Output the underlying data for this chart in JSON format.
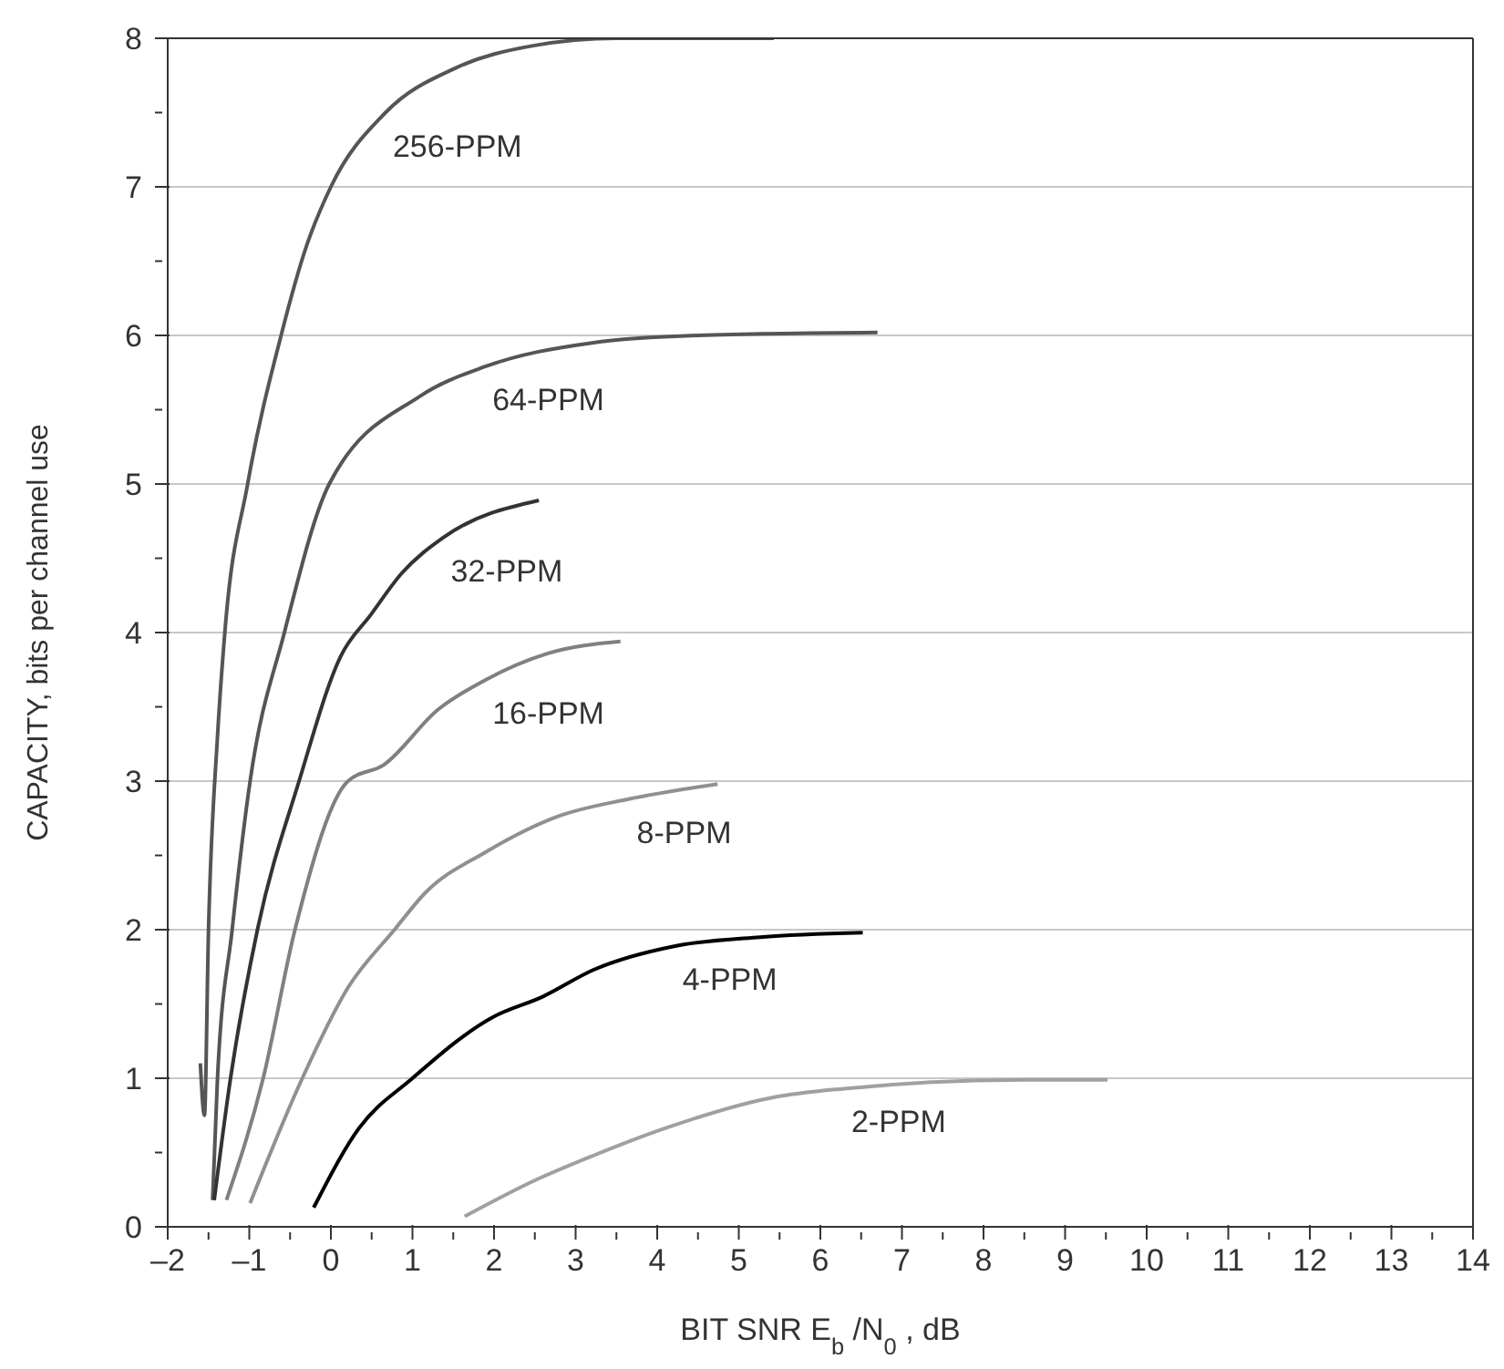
{
  "chart_data": {
    "type": "line",
    "xlabel": "BIT SNR E$_{b}$ /N$_{0}$ , dB",
    "ylabel": "CAPACITY, bits per channel use",
    "xlim": [
      -2,
      14
    ],
    "ylim": [
      0,
      8
    ],
    "xticks": [
      {
        "value": -2,
        "label": "–2"
      },
      {
        "value": -1.5,
        "label": null
      },
      {
        "value": -1,
        "label": "–1"
      },
      {
        "value": -0.5,
        "label": null
      },
      0,
      {
        "value": 0.5,
        "label": null
      },
      1,
      {
        "value": 1.5,
        "label": null
      },
      2,
      {
        "value": 2.5,
        "label": null
      },
      3,
      {
        "value": 3.5,
        "label": null
      },
      4,
      {
        "value": 4.5,
        "label": null
      },
      5,
      {
        "value": 5.5,
        "label": null
      },
      6,
      {
        "value": 6.5,
        "label": null
      },
      7,
      {
        "value": 7.5,
        "label": null
      },
      8,
      {
        "value": 8.5,
        "label": null
      },
      9,
      {
        "value": 9.5,
        "label": null
      },
      10,
      {
        "value": 10.5,
        "label": null
      },
      11,
      {
        "value": 11.5,
        "label": null
      },
      12,
      {
        "value": 12.5,
        "label": null
      },
      13,
      {
        "value": 13.5,
        "label": null
      },
      14
    ],
    "yticks": [
      0,
      {
        "value": 0.5,
        "label": null
      },
      1,
      {
        "value": 1.5,
        "label": null
      },
      2,
      {
        "value": 2.5,
        "label": null
      },
      3,
      {
        "value": 3.5,
        "label": null
      },
      4,
      {
        "value": 4.5,
        "label": null
      },
      5,
      {
        "value": 5.5,
        "label": null
      },
      6,
      {
        "value": 6.5,
        "label": null
      },
      7,
      {
        "value": 7.5,
        "label": null
      },
      8
    ],
    "grid": "y",
    "legend": false,
    "marker": "none",
    "line_style": "solid",
    "series": [
      {
        "name": "256-PPM",
        "color": "#555555",
        "x": [
          -1.6,
          -1.55,
          -1.5,
          -1.39,
          -1.3,
          -1.02,
          -0.61,
          -0.3,
          0,
          0.67,
          1.53,
          2.48,
          3.5,
          5.43
        ],
        "values": [
          1.1,
          0.75,
          2.0,
          3.3,
          4,
          5,
          6,
          6.6,
          7,
          7.5,
          7.8,
          7.95,
          8.0,
          8.0
        ]
      },
      {
        "name": "64-PPM",
        "color": "#555555",
        "x": [
          -1.45,
          -1.39,
          -1.21,
          -0.99,
          -0.57,
          -0.02,
          1.09,
          1.89,
          3.2,
          4.5,
          6.7
        ],
        "values": [
          0.18,
          1,
          2,
          3,
          4,
          5,
          5.59,
          5.79,
          5.95,
          6.0,
          6.02
        ]
      },
      {
        "name": "32-PPM",
        "color": "#333333",
        "x": [
          -1.43,
          -1.23,
          -0.9,
          -0.39,
          0.12,
          0.49,
          0.87,
          1.38,
          2.55
        ],
        "values": [
          0.18,
          1,
          2,
          3,
          3.84,
          4.12,
          4.4,
          4.64,
          4.89
        ]
      },
      {
        "name": "16-PPM",
        "color": "#808080",
        "x": [
          -1.28,
          -0.83,
          -0.44,
          0.21,
          0.65,
          1.31,
          1.89,
          2.66,
          3.55
        ],
        "values": [
          0.18,
          1,
          2,
          3,
          3.11,
          3.48,
          3.68,
          3.86,
          3.94
        ]
      },
      {
        "name": "8-PPM",
        "color": "#909090",
        "x": [
          -0.99,
          -0.35,
          0.21,
          0.78,
          1.16,
          1.89,
          2.77,
          3.66,
          4.74
        ],
        "values": [
          0.16,
          1,
          1.61,
          2,
          2.25,
          2.52,
          2.76,
          2.88,
          2.98
        ]
      },
      {
        "name": "4-PPM",
        "color": "#000000",
        "x": [
          -0.21,
          0.34,
          1.0,
          1.98,
          2.6,
          3.22,
          4.22,
          5.26,
          6.52
        ],
        "values": [
          0.13,
          0.66,
          1.0,
          1.41,
          1.55,
          1.73,
          1.89,
          1.95,
          1.98
        ]
      },
      {
        "name": "2-PPM",
        "color": "#a0a0a0",
        "x": [
          1.64,
          2.49,
          3.22,
          4.08,
          5.41,
          6.29,
          8.5,
          9.52
        ],
        "values": [
          0.07,
          0.31,
          0.48,
          0.66,
          0.87,
          0.93,
          0.99,
          0.99
        ]
      }
    ]
  }
}
